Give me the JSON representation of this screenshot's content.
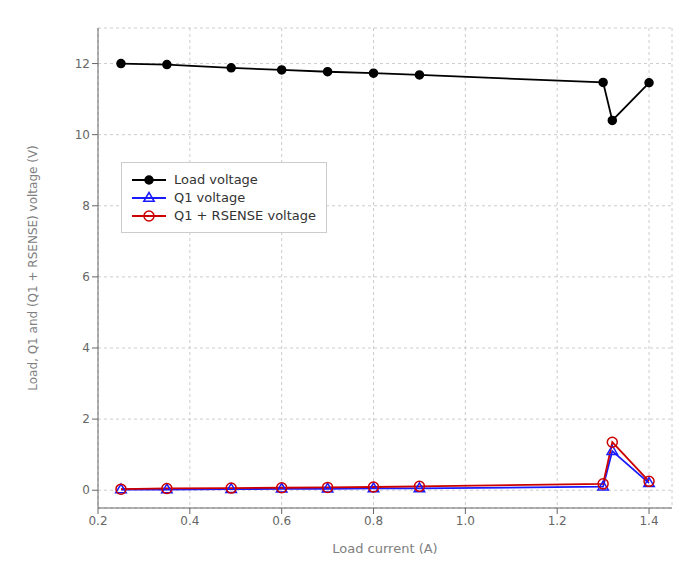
{
  "chart_data": {
    "type": "line",
    "xlabel": "Load current (A)",
    "ylabel": "Load, Q1 and (Q1 + RSENSE) voltage (V)",
    "xlim": [
      0.2,
      1.45
    ],
    "ylim": [
      -0.5,
      13.0
    ],
    "xticks": [
      0.2,
      0.4,
      0.6,
      0.8,
      {
        "value": 1.0,
        "label": "1.0"
      },
      1.2,
      1.4
    ],
    "yticks": [
      0,
      2,
      4,
      6,
      8,
      10,
      12
    ],
    "grid": true,
    "legend": "center left",
    "series": [
      {
        "name": "Load voltage",
        "color": "#000000",
        "marker": "circle",
        "x": [
          0.25,
          0.35,
          0.49,
          0.6,
          0.7,
          0.8,
          0.9,
          1.3,
          1.32,
          1.4
        ],
        "values": [
          12.0,
          11.97,
          11.88,
          11.82,
          11.77,
          11.73,
          11.68,
          11.47,
          10.4,
          11.46
        ]
      },
      {
        "name": "Q1 voltage",
        "color": "#1a1aff",
        "marker": "triangle-open",
        "x": [
          0.25,
          0.35,
          0.49,
          0.6,
          0.7,
          0.8,
          0.9,
          1.3,
          1.32,
          1.4
        ],
        "values": [
          0.02,
          0.02,
          0.03,
          0.04,
          0.04,
          0.05,
          0.05,
          0.1,
          1.1,
          0.2
        ]
      },
      {
        "name": "Q1 + RSENSE voltage",
        "color": "#cc0000",
        "marker": "circle-open",
        "x": [
          0.25,
          0.35,
          0.49,
          0.6,
          0.7,
          0.8,
          0.9,
          1.3,
          1.32,
          1.4
        ],
        "values": [
          0.03,
          0.05,
          0.06,
          0.07,
          0.08,
          0.09,
          0.11,
          0.18,
          1.35,
          0.25
        ]
      }
    ]
  }
}
